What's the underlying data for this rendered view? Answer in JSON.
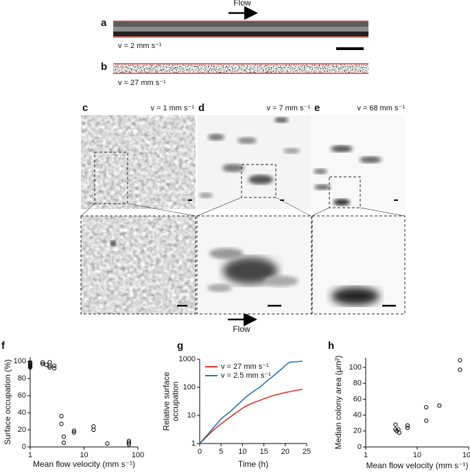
{
  "flow_labels": [
    "Flow",
    "Flow"
  ],
  "panels": [
    {
      "label": "a",
      "caption": "v = 2 mm s⁻¹"
    },
    {
      "label": "b",
      "caption": "v = 27 mm s⁻¹"
    },
    {
      "label": "c",
      "caption": "v = 1 mm s⁻¹"
    },
    {
      "label": "d",
      "caption": "v = 7 mm s⁻¹"
    },
    {
      "label": "e",
      "caption": "v = 68 mm s⁻¹"
    }
  ],
  "chart_data": [
    {
      "type": "scatter",
      "label": "f",
      "xlabel": "Mean flow velocity (mm s⁻¹)",
      "ylabel": [
        "Surface occupation (%)"
      ],
      "xscale": "log",
      "xlim": [
        1,
        100
      ],
      "xticks": [
        1,
        10,
        100
      ],
      "ylim": [
        0,
        105
      ],
      "yticks": [
        0,
        20,
        40,
        60,
        80,
        100
      ],
      "color": "#111111",
      "x": [
        1,
        1,
        1,
        1,
        1,
        1,
        1,
        1.7,
        1.7,
        2,
        2.3,
        2.3,
        2.3,
        2.8,
        2.8,
        3.8,
        3.8,
        4.2,
        4.2,
        6.5,
        6.5,
        15,
        15,
        27,
        68,
        68,
        68
      ],
      "values": [
        99,
        98,
        97,
        96,
        95,
        94,
        93,
        99,
        97,
        96,
        99,
        95,
        93,
        95,
        92,
        36,
        27,
        12,
        5,
        19,
        17,
        24,
        20,
        4,
        7,
        5,
        3
      ]
    },
    {
      "type": "line",
      "label": "g",
      "xlabel": "Time (h)",
      "ylabel": [
        "Relative surface",
        "occupation"
      ],
      "yscale": "log",
      "xlim": [
        0,
        25
      ],
      "xticks": [
        0,
        5,
        10,
        15,
        20,
        25
      ],
      "ylim": [
        1,
        1000
      ],
      "yticks": [
        1,
        10,
        100,
        1000
      ],
      "x": [
        0,
        1,
        2,
        3,
        4,
        5,
        6,
        7,
        8,
        9,
        10,
        11,
        12,
        13,
        14,
        15,
        16,
        17,
        18,
        19,
        20,
        21,
        22,
        23,
        24
      ],
      "series": [
        {
          "name": "v = 27 mm s⁻¹",
          "color": "#e0312c",
          "values": [
            1,
            1.4,
            2,
            2.8,
            3.8,
            5,
            6.5,
            8.5,
            11,
            14,
            18,
            22,
            26,
            30,
            34,
            39,
            44,
            50,
            55,
            60,
            65,
            70,
            75,
            80,
            85
          ]
        },
        {
          "name": "v = 2.5 mm s⁻¹",
          "color": "#2470b3",
          "values": [
            1,
            1.5,
            2.2,
            3.3,
            5,
            7.5,
            10,
            13,
            18,
            25,
            35,
            48,
            62,
            80,
            100,
            135,
            180,
            240,
            320,
            430,
            600,
            780,
            800,
            820,
            850
          ]
        }
      ]
    },
    {
      "type": "scatter",
      "label": "h",
      "xlabel": "Mean flow velocity (mm s⁻¹)",
      "ylabel": [
        "Median colony area (μm²)"
      ],
      "xscale": "log",
      "xlim": [
        1,
        100
      ],
      "xticks": [
        1,
        10,
        100
      ],
      "ylim": [
        0,
        112
      ],
      "yticks": [
        0,
        20,
        40,
        60,
        80,
        100
      ],
      "color": "#111111",
      "x": [
        3.8,
        3.8,
        4,
        4.3,
        4.5,
        6.5,
        6.5,
        15,
        15,
        27,
        68,
        68
      ],
      "values": [
        28,
        22,
        20,
        22,
        18,
        27,
        24,
        50,
        33,
        52,
        109,
        97
      ]
    }
  ]
}
